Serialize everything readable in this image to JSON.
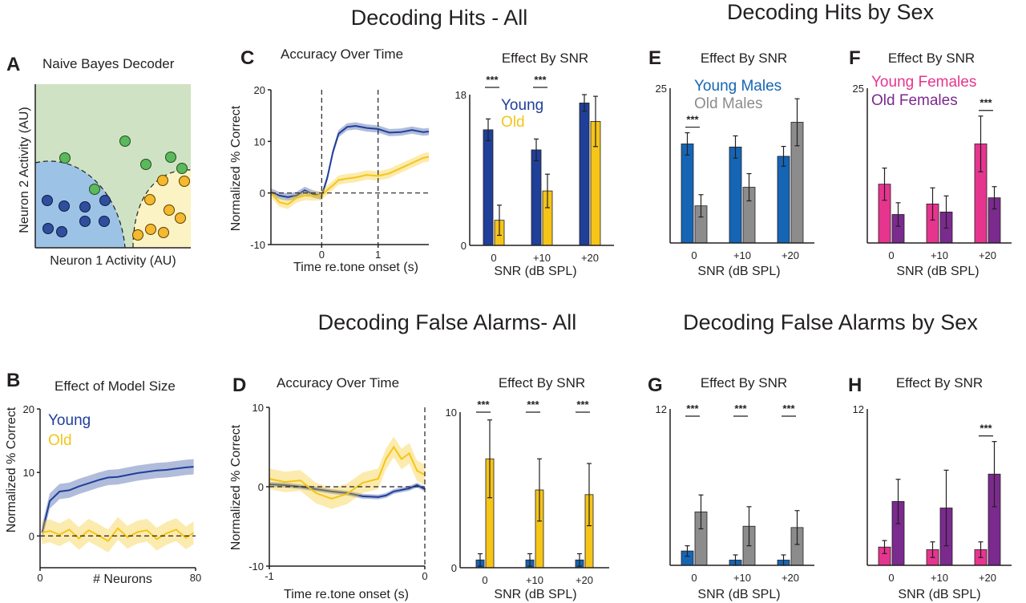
{
  "titles": {
    "hits_all": "Decoding Hits - All",
    "hits_sex": "Decoding Hits by Sex",
    "fa_all": "Decoding False Alarms- All",
    "fa_sex": "Decoding False Alarms by Sex"
  },
  "colors": {
    "young": "#1f3f99",
    "old": "#f5c518",
    "young_males": "#1565b5",
    "old_males": "#8c8c8c",
    "young_females": "#e6358f",
    "old_females": "#7b2a8e",
    "green_region": "#cfe3c4",
    "blue_region": "#9cc3e6",
    "yellow_region": "#fbf3c4",
    "green_dot": "#5cb85c",
    "blue_dot": "#2f4f9e",
    "yellow_dot": "#f5b82e"
  },
  "panelA": {
    "letter": "A",
    "title": "Naive Bayes Decoder",
    "xlabel": "Neuron 1 Activity (AU)",
    "ylabel": "Neuron 2 Activity (AU)"
  },
  "panelB": {
    "letter": "B",
    "title": "Effect of Model Size",
    "xlabel": "# Neurons",
    "ylabel": "Normalized % Correct",
    "legend": [
      "Young",
      "Old"
    ]
  },
  "panelC": {
    "letter": "C",
    "title": "Accuracy Over Time",
    "xlabel": "Time re.tone onset (s)",
    "ylabel": "Normalized % Correct"
  },
  "panelCbar": {
    "title": "Effect By SNR",
    "xlabel": "SNR (dB SPL)",
    "legend": [
      "Young",
      "Old"
    ]
  },
  "panelD": {
    "letter": "D",
    "title": "Accuracy Over Time",
    "xlabel": "Time re.tone onset (s)",
    "ylabel": "Normalized % Correct"
  },
  "panelDbar": {
    "title": "Effect By SNR",
    "xlabel": "SNR (dB SPL)"
  },
  "panelE": {
    "letter": "E",
    "title": "Effect By SNR",
    "xlabel": "SNR (dB SPL)",
    "legend": [
      "Young Males",
      "Old Males"
    ]
  },
  "panelF": {
    "letter": "F",
    "title": "Effect By SNR",
    "xlabel": "SNR (dB SPL)",
    "legend": [
      "Young Females",
      "Old Females"
    ]
  },
  "panelG": {
    "letter": "G",
    "title": "Effect By SNR",
    "xlabel": "SNR (dB SPL)"
  },
  "panelH": {
    "letter": "H",
    "title": "Effect By SNR",
    "xlabel": "SNR (dB SPL)"
  },
  "chart_data": [
    {
      "id": "B",
      "type": "line",
      "title": "Effect of Model Size",
      "xlabel": "# Neurons",
      "ylabel": "Normalized % Correct",
      "xlim": [
        0,
        80
      ],
      "ylim": [
        -5,
        20
      ],
      "xticks": [
        "0",
        "80"
      ],
      "yticks": [
        "0",
        "10",
        "20"
      ],
      "x": [
        1,
        5,
        10,
        15,
        20,
        25,
        30,
        35,
        40,
        45,
        50,
        55,
        60,
        65,
        70,
        75,
        79
      ],
      "series": [
        {
          "name": "Young",
          "values": [
            0.5,
            5.5,
            7.0,
            7.2,
            7.8,
            8.3,
            8.8,
            9.2,
            9.3,
            9.6,
            9.9,
            10.1,
            10.3,
            10.4,
            10.6,
            10.8,
            10.9
          ],
          "band": 1.2
        },
        {
          "name": "Old",
          "values": [
            0.5,
            0.8,
            0.2,
            1.0,
            -0.4,
            0.9,
            0.1,
            -0.8,
            1.2,
            -0.2,
            0.6,
            0.9,
            -0.5,
            0.4,
            1.0,
            -0.3,
            0.5
          ],
          "band": 1.8
        }
      ]
    },
    {
      "id": "C",
      "type": "line",
      "title": "Accuracy Over Time",
      "xlabel": "Time re.tone onset (s)",
      "ylabel": "Normalized % Correct",
      "xlim": [
        -0.9,
        1.9
      ],
      "ylim": [
        -10,
        20
      ],
      "xticks": [
        "0",
        "1"
      ],
      "yticks": [
        "-10",
        "0",
        "10",
        "20"
      ],
      "x": [
        -0.9,
        -0.75,
        -0.6,
        -0.45,
        -0.3,
        -0.15,
        0,
        0.1,
        0.2,
        0.3,
        0.45,
        0.6,
        0.8,
        1.0,
        1.2,
        1.4,
        1.6,
        1.8,
        1.9
      ],
      "series": [
        {
          "name": "Young",
          "values": [
            0.2,
            -0.5,
            -0.8,
            -0.5,
            0.5,
            -0.2,
            -0.6,
            3.0,
            8.0,
            11.5,
            12.8,
            13.0,
            12.6,
            12.4,
            11.7,
            11.8,
            12.2,
            11.8,
            11.9
          ],
          "band": 0.7
        },
        {
          "name": "Old",
          "values": [
            0.0,
            -1.8,
            -2.2,
            -1.0,
            -0.5,
            -0.6,
            -0.5,
            0.6,
            1.5,
            2.5,
            2.8,
            3.0,
            3.5,
            3.3,
            3.8,
            4.8,
            5.8,
            6.8,
            7.0
          ],
          "band": 0.9
        }
      ]
    },
    {
      "id": "C-bar",
      "type": "bar",
      "title": "Effect By SNR",
      "xlabel": "SNR (dB SPL)",
      "categories": [
        "0",
        "+10",
        "+20"
      ],
      "ylim": [
        0,
        18
      ],
      "yticks": [
        "0",
        "18"
      ],
      "series": [
        {
          "name": "Young",
          "values": [
            13.8,
            11.4,
            17.0
          ],
          "err": [
            1.3,
            1.3,
            1.0
          ]
        },
        {
          "name": "Old",
          "values": [
            3.0,
            6.5,
            14.8
          ],
          "err": [
            1.8,
            2.0,
            3.0
          ]
        }
      ],
      "significance": [
        "***",
        "***",
        ""
      ]
    },
    {
      "id": "D",
      "type": "line",
      "title": "Accuracy Over Time",
      "xlabel": "Time re.tone onset (s)",
      "ylabel": "Normalized % Correct",
      "xlim": [
        -1,
        0
      ],
      "ylim": [
        -10,
        10
      ],
      "xticks": [
        "-1",
        "0"
      ],
      "yticks": [
        "-10",
        "0",
        "10"
      ],
      "x": [
        -1,
        -0.9,
        -0.8,
        -0.7,
        -0.6,
        -0.5,
        -0.4,
        -0.3,
        -0.25,
        -0.2,
        -0.15,
        -0.1,
        -0.05,
        0
      ],
      "series": [
        {
          "name": "Young",
          "values": [
            0.3,
            0.2,
            0.0,
            -0.3,
            -0.6,
            -0.8,
            -1.2,
            -1.3,
            -1.1,
            -0.6,
            -0.4,
            -0.2,
            0.2,
            -0.3
          ],
          "band": 0.3
        },
        {
          "name": "Old",
          "values": [
            1.0,
            0.6,
            0.8,
            -0.8,
            -1.5,
            -0.9,
            0.5,
            1.0,
            3.5,
            5.0,
            3.5,
            4.2,
            2.0,
            1.5
          ],
          "band": 1.3
        }
      ]
    },
    {
      "id": "D-bar",
      "type": "bar",
      "title": "Effect By SNR",
      "xlabel": "SNR (dB SPL)",
      "categories": [
        "0",
        "+10",
        "+20"
      ],
      "ylim": [
        0,
        10
      ],
      "yticks": [
        "0",
        "10"
      ],
      "series": [
        {
          "name": "Young",
          "values": [
            0.5,
            0.5,
            0.5
          ],
          "err": [
            0.4,
            0.4,
            0.4
          ]
        },
        {
          "name": "Old",
          "values": [
            7.0,
            5.0,
            4.7
          ],
          "err": [
            2.5,
            2.0,
            2.0
          ]
        }
      ],
      "significance": [
        "***",
        "***",
        "***"
      ]
    },
    {
      "id": "E",
      "type": "bar",
      "title": "Effect By SNR",
      "xlabel": "SNR (dB SPL)",
      "categories": [
        "0",
        "+10",
        "+20"
      ],
      "ylim": [
        0,
        25
      ],
      "yticks": [
        "25"
      ],
      "series": [
        {
          "name": "Young Males",
          "values": [
            16.0,
            15.5,
            14.0
          ],
          "err": [
            1.8,
            1.8,
            1.6
          ]
        },
        {
          "name": "Old Males",
          "values": [
            6.0,
            9.0,
            19.5
          ],
          "err": [
            1.8,
            2.2,
            3.8
          ]
        }
      ],
      "significance": [
        "***",
        "",
        ""
      ]
    },
    {
      "id": "F",
      "type": "bar",
      "title": "Effect By SNR",
      "xlabel": "SNR (dB SPL)",
      "categories": [
        "0",
        "+10",
        "+20"
      ],
      "ylim": [
        0,
        25
      ],
      "yticks": [
        "25"
      ],
      "series": [
        {
          "name": "Young Females",
          "values": [
            9.5,
            6.3,
            16.0
          ],
          "err": [
            2.6,
            2.6,
            4.5
          ]
        },
        {
          "name": "Old Females",
          "values": [
            4.6,
            5.0,
            7.3
          ],
          "err": [
            1.9,
            2.6,
            1.8
          ]
        }
      ],
      "significance": [
        "",
        "",
        "***"
      ]
    },
    {
      "id": "G",
      "type": "bar",
      "title": "Effect By SNR",
      "xlabel": "SNR (dB SPL)",
      "categories": [
        "0",
        "+10",
        "+20"
      ],
      "ylim": [
        0,
        12
      ],
      "yticks": [
        "12"
      ],
      "series": [
        {
          "name": "Young Males",
          "values": [
            1.1,
            0.4,
            0.4
          ],
          "err": [
            0.4,
            0.4,
            0.4
          ]
        },
        {
          "name": "Old Males",
          "values": [
            4.1,
            3.0,
            2.9
          ],
          "err": [
            1.3,
            1.5,
            1.3
          ]
        }
      ],
      "significance": [
        "***",
        "***",
        "***"
      ]
    },
    {
      "id": "H",
      "type": "bar",
      "title": "Effect By SNR",
      "xlabel": "SNR (dB SPL)",
      "categories": [
        "0",
        "+10",
        "+20"
      ],
      "ylim": [
        0,
        12
      ],
      "yticks": [
        "12"
      ],
      "series": [
        {
          "name": "Young Females",
          "values": [
            1.4,
            1.2,
            1.2
          ],
          "err": [
            0.5,
            0.6,
            0.6
          ]
        },
        {
          "name": "Old Females",
          "values": [
            4.9,
            4.4,
            7.0
          ],
          "err": [
            1.7,
            2.9,
            2.5
          ]
        }
      ],
      "significance": [
        "",
        "",
        "***"
      ]
    }
  ]
}
